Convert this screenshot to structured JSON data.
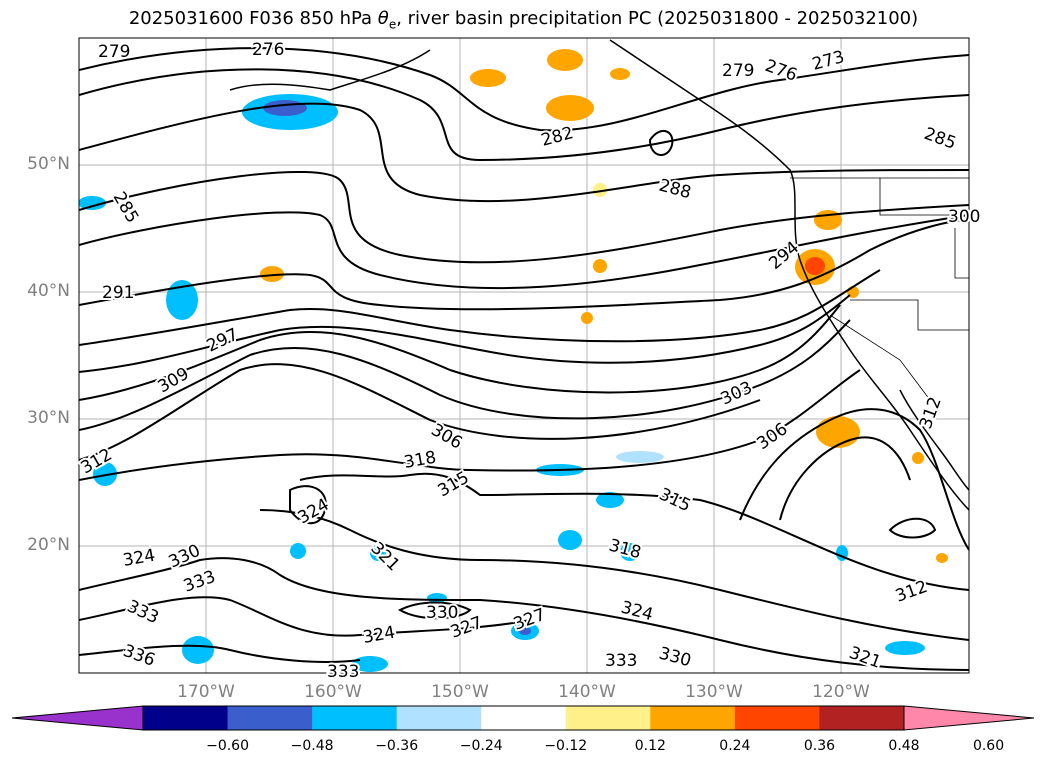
{
  "title_main": "2025031600 F036 850 hPa ",
  "title_symbol": "θ",
  "title_sub": "e",
  "title_rest": ", river basin precipitation PC (2025031800 - 2025032100)",
  "lat_labels": [
    "50°N",
    "40°N",
    "30°N",
    "20°N"
  ],
  "lon_labels": [
    "170°W",
    "160°W",
    "150°W",
    "140°W",
    "130°W",
    "120°W"
  ],
  "contour_labels": [
    {
      "text": "279"
    },
    {
      "text": "276"
    },
    {
      "text": "279"
    },
    {
      "text": "276"
    },
    {
      "text": "273"
    },
    {
      "text": "282"
    },
    {
      "text": "285"
    },
    {
      "text": "285"
    },
    {
      "text": "288"
    },
    {
      "text": "294"
    },
    {
      "text": "291"
    },
    {
      "text": "297"
    },
    {
      "text": "309"
    },
    {
      "text": "303"
    },
    {
      "text": "306"
    },
    {
      "text": "306"
    },
    {
      "text": "318"
    },
    {
      "text": "315"
    },
    {
      "text": "315"
    },
    {
      "text": "312"
    },
    {
      "text": "312"
    },
    {
      "text": "324"
    },
    {
      "text": "321"
    },
    {
      "text": "318"
    },
    {
      "text": "324"
    },
    {
      "text": "330"
    },
    {
      "text": "333"
    },
    {
      "text": "333"
    },
    {
      "text": "330"
    },
    {
      "text": "327"
    },
    {
      "text": "327"
    },
    {
      "text": "324"
    },
    {
      "text": "324"
    },
    {
      "text": "336"
    },
    {
      "text": "333"
    },
    {
      "text": "333"
    },
    {
      "text": "330"
    },
    {
      "text": "312"
    },
    {
      "text": "321"
    },
    {
      "text": "300"
    }
  ],
  "colorbar": {
    "colors": [
      "#9932cc",
      "#00008b",
      "#3a5fcd",
      "#00bfff",
      "#b0e2ff",
      "#ffffff",
      "#fff08a",
      "#ffa500",
      "#ff4500",
      "#b22222",
      "#ff88aa"
    ],
    "ticks": [
      "−0.60",
      "−0.48",
      "−0.36",
      "−0.24",
      "−0.12",
      "0.12",
      "0.24",
      "0.36",
      "0.48",
      "0.60"
    ]
  },
  "colors": {
    "gridline": "#b4b4b4",
    "contour": "#000000",
    "axis_label": "#808080"
  }
}
